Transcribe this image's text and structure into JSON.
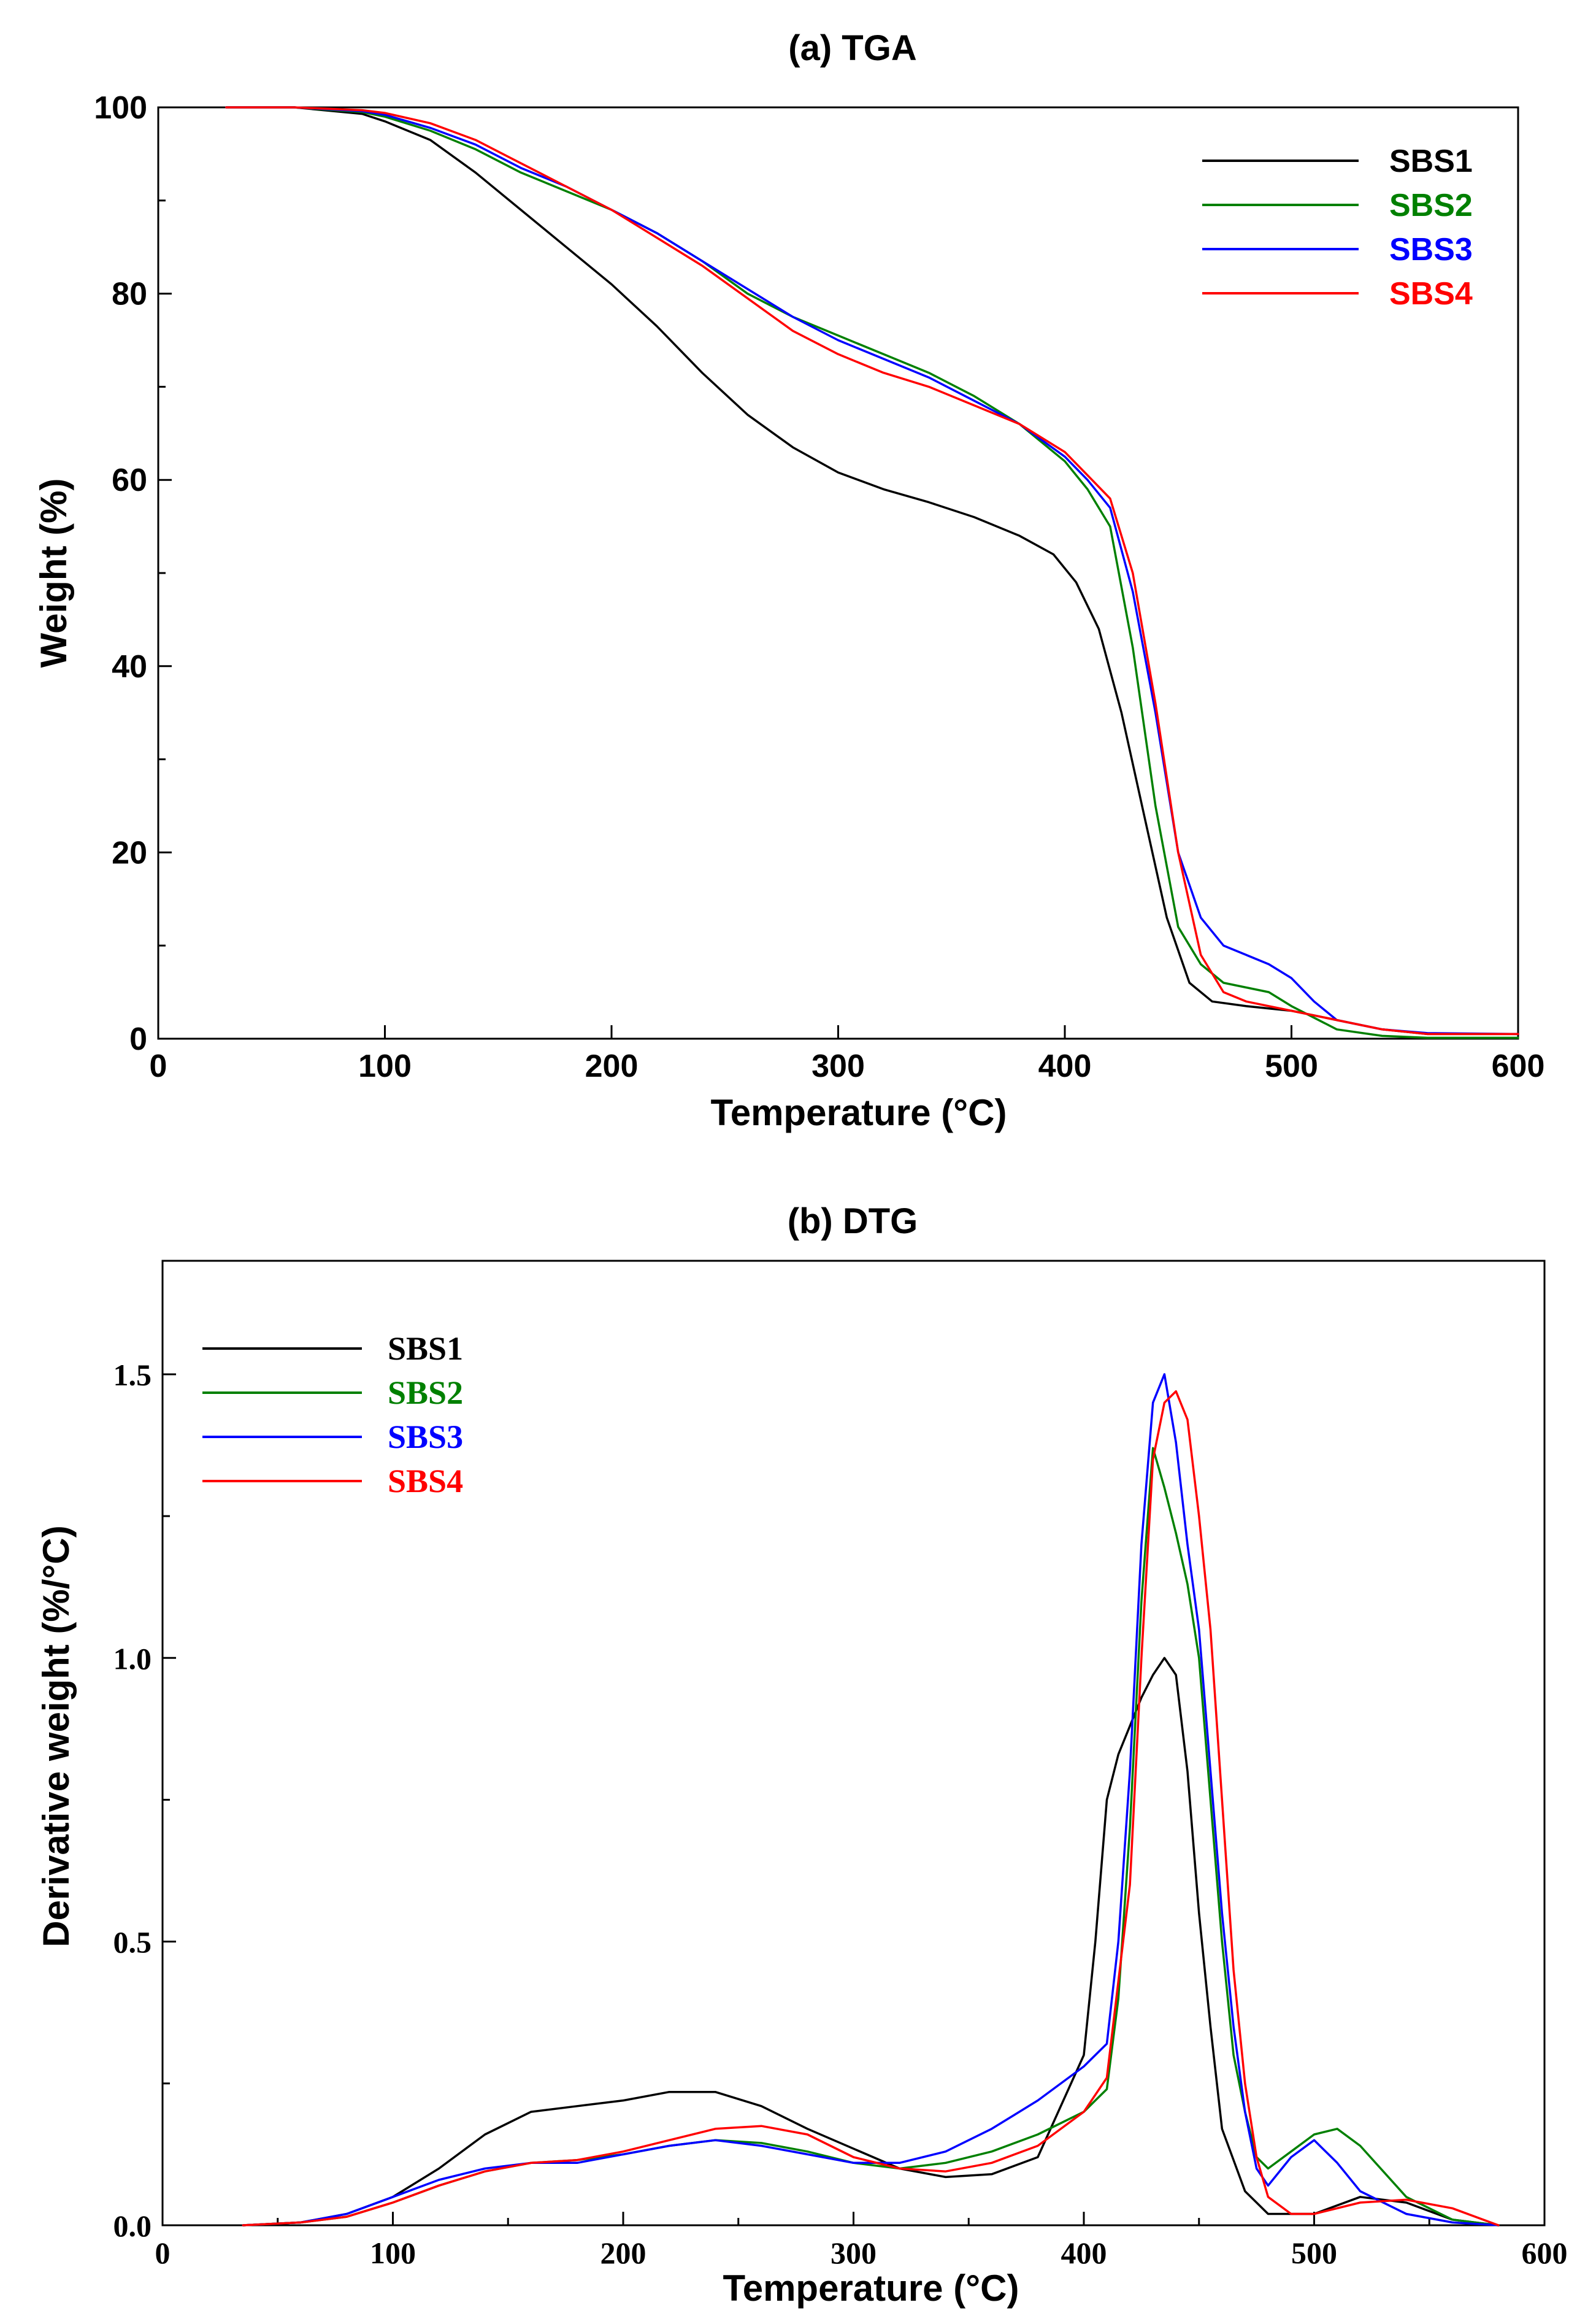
{
  "chart_data": [
    {
      "type": "line",
      "title": "(a) TGA",
      "xlabel": "Temperature (°C)",
      "ylabel": "Weight  (%)",
      "xlim": [
        0,
        600
      ],
      "ylim": [
        0,
        100
      ],
      "xticks": [
        "0",
        "100",
        "200",
        "300",
        "400",
        "500",
        "600"
      ],
      "yticks": [
        "0",
        "20",
        "40",
        "60",
        "80",
        "100"
      ],
      "grid": false,
      "legend_position": "top-right",
      "series": [
        {
          "name": "SBS1",
          "color": "#000000",
          "x": [
            30,
            60,
            90,
            100,
            120,
            140,
            160,
            180,
            200,
            220,
            240,
            260,
            280,
            300,
            320,
            340,
            360,
            380,
            395,
            405,
            415,
            425,
            435,
            445,
            455,
            465,
            480,
            500,
            520,
            540,
            560,
            600
          ],
          "y": [
            100,
            100,
            99.3,
            98.5,
            96.5,
            93,
            89,
            85,
            81,
            76.5,
            71.5,
            67,
            63.5,
            60.8,
            59,
            57.6,
            56,
            54,
            52,
            49,
            44,
            35,
            24,
            13,
            6,
            4,
            3.5,
            3,
            2,
            1,
            0.5,
            0.5
          ]
        },
        {
          "name": "SBS2",
          "color": "#008000",
          "x": [
            30,
            60,
            90,
            100,
            120,
            140,
            160,
            180,
            200,
            220,
            240,
            260,
            280,
            300,
            320,
            340,
            360,
            380,
            400,
            410,
            420,
            430,
            440,
            450,
            460,
            470,
            480,
            490,
            500,
            520,
            540,
            560,
            600
          ],
          "y": [
            100,
            100,
            99.5,
            99,
            97.5,
            95.5,
            93,
            91,
            89,
            86.5,
            83.5,
            80,
            77.5,
            75.5,
            73.5,
            71.5,
            69,
            66,
            62,
            59,
            55,
            42,
            25,
            12,
            8,
            6,
            5.5,
            5,
            3.5,
            1,
            0.3,
            0.1,
            0.1
          ]
        },
        {
          "name": "SBS3",
          "color": "#0000ff",
          "x": [
            30,
            60,
            90,
            100,
            120,
            140,
            160,
            180,
            200,
            220,
            240,
            260,
            280,
            300,
            320,
            340,
            360,
            380,
            400,
            410,
            420,
            430,
            440,
            450,
            460,
            470,
            480,
            490,
            500,
            510,
            520,
            540,
            560,
            600
          ],
          "y": [
            100,
            100,
            99.6,
            99.2,
            97.8,
            96,
            93.5,
            91.5,
            89,
            86.5,
            83.5,
            80.5,
            77.5,
            75,
            73,
            71,
            68.5,
            66,
            62.5,
            60,
            57,
            48,
            35,
            20,
            13,
            10,
            9,
            8,
            6.5,
            4,
            2,
            1,
            0.6,
            0.5
          ]
        },
        {
          "name": "SBS4",
          "color": "#ff0000",
          "x": [
            30,
            60,
            90,
            100,
            120,
            140,
            160,
            180,
            200,
            220,
            240,
            260,
            280,
            300,
            320,
            340,
            360,
            380,
            400,
            410,
            420,
            430,
            440,
            450,
            460,
            470,
            480,
            500,
            520,
            540,
            560,
            600
          ],
          "y": [
            100,
            100,
            99.7,
            99.4,
            98.3,
            96.5,
            94,
            91.5,
            89,
            86,
            83,
            79.5,
            76,
            73.5,
            71.5,
            70,
            68,
            66,
            63,
            60.5,
            58,
            50,
            36,
            20,
            9,
            5,
            4,
            3,
            2,
            1,
            0.5,
            0.5
          ]
        }
      ]
    },
    {
      "type": "line",
      "title": "(b) DTG",
      "xlabel": "Temperature (°C)",
      "ylabel": "Derivative weight (%/°C)",
      "xlim": [
        0,
        600
      ],
      "ylim": [
        0,
        1.7
      ],
      "xticks": [
        "0",
        "100",
        "200",
        "300",
        "400",
        "500",
        "600"
      ],
      "yticks": [
        "0.0",
        "0.5",
        "1.0",
        "1.5"
      ],
      "grid": false,
      "legend_position": "top-left",
      "series": [
        {
          "name": "SBS1",
          "color": "#000000",
          "x": [
            35,
            60,
            80,
            100,
            120,
            140,
            160,
            180,
            200,
            220,
            240,
            260,
            280,
            300,
            320,
            340,
            360,
            380,
            400,
            405,
            410,
            415,
            420,
            425,
            430,
            435,
            440,
            445,
            450,
            455,
            460,
            470,
            480,
            490,
            500,
            520,
            540,
            560,
            580
          ],
          "y": [
            0,
            0.005,
            0.02,
            0.05,
            0.1,
            0.16,
            0.2,
            0.21,
            0.22,
            0.235,
            0.235,
            0.21,
            0.17,
            0.135,
            0.1,
            0.085,
            0.09,
            0.12,
            0.3,
            0.5,
            0.75,
            0.83,
            0.88,
            0.93,
            0.97,
            1.0,
            0.97,
            0.8,
            0.55,
            0.35,
            0.17,
            0.06,
            0.02,
            0.02,
            0.02,
            0.05,
            0.04,
            0.01,
            0
          ]
        },
        {
          "name": "SBS2",
          "color": "#008000",
          "x": [
            35,
            60,
            80,
            100,
            120,
            140,
            160,
            180,
            200,
            220,
            240,
            260,
            280,
            300,
            320,
            340,
            360,
            380,
            400,
            410,
            415,
            420,
            425,
            430,
            435,
            440,
            445,
            450,
            455,
            460,
            465,
            470,
            475,
            480,
            490,
            500,
            510,
            520,
            540,
            560,
            580
          ],
          "y": [
            0,
            0.005,
            0.015,
            0.04,
            0.07,
            0.095,
            0.11,
            0.115,
            0.125,
            0.14,
            0.15,
            0.145,
            0.13,
            0.11,
            0.1,
            0.11,
            0.13,
            0.16,
            0.2,
            0.24,
            0.4,
            0.7,
            1.1,
            1.37,
            1.3,
            1.22,
            1.13,
            1.0,
            0.75,
            0.5,
            0.3,
            0.2,
            0.12,
            0.1,
            0.13,
            0.16,
            0.17,
            0.14,
            0.05,
            0.01,
            0
          ]
        },
        {
          "name": "SBS3",
          "color": "#0000ff",
          "x": [
            35,
            60,
            80,
            100,
            120,
            140,
            160,
            180,
            200,
            220,
            240,
            260,
            280,
            300,
            320,
            340,
            360,
            380,
            400,
            410,
            415,
            420,
            425,
            430,
            435,
            440,
            445,
            450,
            455,
            460,
            465,
            470,
            475,
            480,
            490,
            500,
            510,
            520,
            540,
            560,
            580
          ],
          "y": [
            0,
            0.005,
            0.02,
            0.05,
            0.08,
            0.1,
            0.11,
            0.11,
            0.125,
            0.14,
            0.15,
            0.14,
            0.125,
            0.11,
            0.11,
            0.13,
            0.17,
            0.22,
            0.28,
            0.32,
            0.5,
            0.8,
            1.2,
            1.45,
            1.5,
            1.38,
            1.2,
            1.05,
            0.8,
            0.55,
            0.35,
            0.2,
            0.1,
            0.07,
            0.12,
            0.15,
            0.11,
            0.06,
            0.02,
            0.005,
            0
          ]
        },
        {
          "name": "SBS4",
          "color": "#ff0000",
          "x": [
            35,
            60,
            80,
            100,
            120,
            140,
            160,
            180,
            200,
            220,
            240,
            260,
            280,
            300,
            320,
            340,
            360,
            380,
            400,
            410,
            420,
            425,
            430,
            435,
            440,
            445,
            450,
            455,
            460,
            465,
            470,
            475,
            480,
            490,
            500,
            520,
            540,
            560,
            580
          ],
          "y": [
            0,
            0.005,
            0.015,
            0.04,
            0.07,
            0.095,
            0.11,
            0.115,
            0.13,
            0.15,
            0.17,
            0.175,
            0.16,
            0.12,
            0.1,
            0.095,
            0.11,
            0.14,
            0.2,
            0.26,
            0.6,
            1.0,
            1.35,
            1.45,
            1.47,
            1.42,
            1.25,
            1.05,
            0.75,
            0.45,
            0.25,
            0.12,
            0.05,
            0.02,
            0.02,
            0.04,
            0.045,
            0.03,
            0
          ]
        }
      ]
    }
  ]
}
